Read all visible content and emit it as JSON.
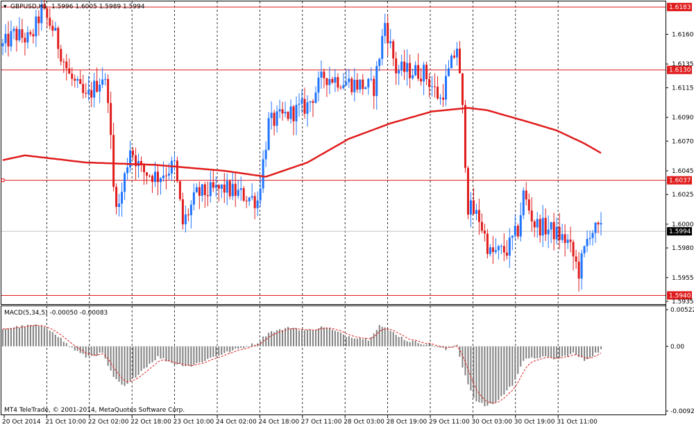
{
  "header": {
    "symbol": "GBPUSD,H1",
    "quote": "1.5996 1.6005 1.5989 1.5994"
  },
  "macd_header": "MACD(5,34,5) -0.00050 -0.00083",
  "copyright": "MT4 TeleTrade, © 2001-2014, MetaQuotes Software Corp.",
  "colors": {
    "bull": "#1e73ff",
    "bear": "#e01b1b",
    "ma": "#e01b1b",
    "level_line": "#e01b1b",
    "histogram": "#808080",
    "signal": "#e01b1b",
    "grid": "#000000"
  },
  "chart_data": [
    {
      "type": "candlestick",
      "title": "GBPUSD,H1",
      "y_ticks": [
        "1.6160",
        "1.6135",
        "1.6115",
        "1.6090",
        "1.6070",
        "1.6045",
        "1.6025",
        "1.6000",
        "1.5980",
        "1.5955",
        "1.5935"
      ],
      "ylim": [
        1.5935,
        1.6186
      ],
      "x_ticks": [
        "20 Oct 2014",
        "21 Oct 10:00",
        "22 Oct 02:00",
        "22 Oct 18:00",
        "23 Oct 10:00",
        "24 Oct 02:00",
        "24 Oct 18:00",
        "27 Oct 11:00",
        "28 Oct 03:00",
        "28 Oct 19:00",
        "29 Oct 11:00",
        "30 Oct 03:00",
        "30 Oct 19:00",
        "31 Oct 11:00"
      ],
      "levels": [
        {
          "value": 1.6183,
          "label": "1.6183"
        },
        {
          "value": 1.613,
          "label": "1.6130"
        },
        {
          "value": 1.6037,
          "label": "1.6037"
        },
        {
          "value": 1.594,
          "label": "1.5940"
        }
      ],
      "current_price": {
        "value": 1.5994,
        "label": "1.5994"
      },
      "moving_average": {
        "anchors": [
          {
            "bar": 0,
            "value": 1.6054
          },
          {
            "bar": 8,
            "value": 1.6058
          },
          {
            "bar": 30,
            "value": 1.6052
          },
          {
            "bar": 55,
            "value": 1.605
          },
          {
            "bar": 80,
            "value": 1.6045
          },
          {
            "bar": 95,
            "value": 1.604
          },
          {
            "bar": 110,
            "value": 1.6052
          },
          {
            "bar": 125,
            "value": 1.6072
          },
          {
            "bar": 140,
            "value": 1.6085
          },
          {
            "bar": 155,
            "value": 1.6095
          },
          {
            "bar": 168,
            "value": 1.6098
          },
          {
            "bar": 175,
            "value": 1.6096
          },
          {
            "bar": 190,
            "value": 1.6086
          },
          {
            "bar": 200,
            "value": 1.6079
          },
          {
            "bar": 210,
            "value": 1.6068
          },
          {
            "bar": 216,
            "value": 1.606
          }
        ]
      },
      "path_anchors": [
        {
          "bar": 0,
          "value": 1.615
        },
        {
          "bar": 4,
          "value": 1.616
        },
        {
          "bar": 10,
          "value": 1.6155
        },
        {
          "bar": 14,
          "value": 1.618
        },
        {
          "bar": 18,
          "value": 1.6165
        },
        {
          "bar": 24,
          "value": 1.6125
        },
        {
          "bar": 30,
          "value": 1.6105
        },
        {
          "bar": 36,
          "value": 1.6125
        },
        {
          "bar": 38,
          "value": 1.611
        },
        {
          "bar": 40,
          "value": 1.603
        },
        {
          "bar": 42,
          "value": 1.6015
        },
        {
          "bar": 46,
          "value": 1.6065
        },
        {
          "bar": 50,
          "value": 1.6045
        },
        {
          "bar": 56,
          "value": 1.604
        },
        {
          "bar": 62,
          "value": 1.605
        },
        {
          "bar": 65,
          "value": 1.6
        },
        {
          "bar": 70,
          "value": 1.6025
        },
        {
          "bar": 80,
          "value": 1.603
        },
        {
          "bar": 86,
          "value": 1.6025
        },
        {
          "bar": 92,
          "value": 1.602
        },
        {
          "bar": 96,
          "value": 1.6085
        },
        {
          "bar": 110,
          "value": 1.61
        },
        {
          "bar": 116,
          "value": 1.6125
        },
        {
          "bar": 124,
          "value": 1.612
        },
        {
          "bar": 134,
          "value": 1.6115
        },
        {
          "bar": 138,
          "value": 1.617
        },
        {
          "bar": 142,
          "value": 1.613
        },
        {
          "bar": 152,
          "value": 1.6128
        },
        {
          "bar": 158,
          "value": 1.6105
        },
        {
          "bar": 164,
          "value": 1.615
        },
        {
          "bar": 166,
          "value": 1.6095
        },
        {
          "bar": 168,
          "value": 1.6015
        },
        {
          "bar": 172,
          "value": 1.6005
        },
        {
          "bar": 176,
          "value": 1.5975
        },
        {
          "bar": 182,
          "value": 1.5978
        },
        {
          "bar": 186,
          "value": 1.5995
        },
        {
          "bar": 188,
          "value": 1.6025
        },
        {
          "bar": 192,
          "value": 1.6
        },
        {
          "bar": 198,
          "value": 1.5995
        },
        {
          "bar": 204,
          "value": 1.5985
        },
        {
          "bar": 208,
          "value": 1.596
        },
        {
          "bar": 212,
          "value": 1.5995
        },
        {
          "bar": 216,
          "value": 1.5994
        }
      ]
    },
    {
      "type": "bar",
      "title": "MACD(5,34,5) -0.00050 -0.00083",
      "y_ticks": [
        "0.00522",
        "0.00",
        "-0.00922"
      ],
      "ylim": [
        -0.00922,
        0.00522
      ],
      "histogram_anchors": [
        {
          "bar": 0,
          "value": 0.0025
        },
        {
          "bar": 6,
          "value": 0.0028
        },
        {
          "bar": 12,
          "value": 0.003
        },
        {
          "bar": 18,
          "value": 0.0022
        },
        {
          "bar": 24,
          "value": 0.0
        },
        {
          "bar": 30,
          "value": -0.0015
        },
        {
          "bar": 36,
          "value": -0.001
        },
        {
          "bar": 40,
          "value": -0.0045
        },
        {
          "bar": 44,
          "value": -0.0058
        },
        {
          "bar": 50,
          "value": -0.0035
        },
        {
          "bar": 56,
          "value": -0.0015
        },
        {
          "bar": 62,
          "value": -0.0025
        },
        {
          "bar": 68,
          "value": -0.0028
        },
        {
          "bar": 76,
          "value": -0.0015
        },
        {
          "bar": 84,
          "value": -0.0005
        },
        {
          "bar": 92,
          "value": 0.0005
        },
        {
          "bar": 96,
          "value": 0.002
        },
        {
          "bar": 104,
          "value": 0.0027
        },
        {
          "bar": 110,
          "value": 0.0022
        },
        {
          "bar": 116,
          "value": 0.0028
        },
        {
          "bar": 124,
          "value": 0.0015
        },
        {
          "bar": 132,
          "value": 0.001
        },
        {
          "bar": 136,
          "value": 0.003
        },
        {
          "bar": 140,
          "value": 0.0022
        },
        {
          "bar": 146,
          "value": 0.0008
        },
        {
          "bar": 154,
          "value": 0.0003
        },
        {
          "bar": 160,
          "value": -0.0005
        },
        {
          "bar": 164,
          "value": 0.0003
        },
        {
          "bar": 166,
          "value": -0.003
        },
        {
          "bar": 170,
          "value": -0.0075
        },
        {
          "bar": 174,
          "value": -0.0085
        },
        {
          "bar": 178,
          "value": -0.008
        },
        {
          "bar": 184,
          "value": -0.0055
        },
        {
          "bar": 188,
          "value": -0.002
        },
        {
          "bar": 194,
          "value": -0.0015
        },
        {
          "bar": 200,
          "value": -0.0018
        },
        {
          "bar": 206,
          "value": -0.001
        },
        {
          "bar": 210,
          "value": -0.002
        },
        {
          "bar": 216,
          "value": -0.0005
        }
      ]
    }
  ]
}
